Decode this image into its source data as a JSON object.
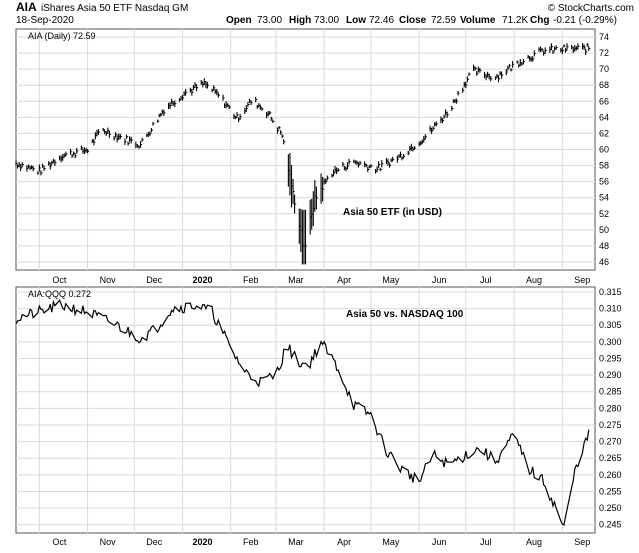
{
  "header": {
    "symbol": "AIA",
    "name": "iShares Asia 50 ETF  Nasdaq GM",
    "date": "18-Sep-2020",
    "open_label": "Open",
    "open": "73.00",
    "high_label": "High",
    "high": "73.00",
    "low_label": "Low",
    "low": "72.46",
    "close_label": "Close",
    "close": "72.59",
    "volume_label": "Volume",
    "volume": "71.2K",
    "chg_label": "Chg",
    "chg": "-0.21 (-0.29%)",
    "source": "© StockCharts.com"
  },
  "chart_data": [
    {
      "type": "bar",
      "legend": "AIA (Daily) 72.59",
      "annotation": "Asia 50 ETF (in USD)",
      "y_ticks": [
        "46",
        "48",
        "50",
        "52",
        "54",
        "56",
        "58",
        "60",
        "62",
        "64",
        "66",
        "68",
        "70",
        "72",
        "74"
      ],
      "ylim": [
        45,
        75
      ],
      "x_labels": [
        "Oct",
        "Nov",
        "Dec",
        "2020",
        "Feb",
        "Mar",
        "Apr",
        "May",
        "Jun",
        "Jul",
        "Aug",
        "Sep"
      ],
      "months": [
        "2019-10",
        "2019-11",
        "2019-12",
        "2020-01",
        "2020-02",
        "2020-03",
        "2020-04",
        "2020-05",
        "2020-06",
        "2020-07",
        "2020-08",
        "2020-09"
      ],
      "close_by_month": [
        [
          "2019-09-16",
          58.3
        ],
        [
          "2019-10-01",
          57.3
        ],
        [
          "2019-10-15",
          59.2
        ],
        [
          "2019-11-01",
          60.0
        ],
        [
          "2019-11-10",
          62.5
        ],
        [
          "2019-11-25",
          61.3
        ],
        [
          "2019-12-05",
          60.6
        ],
        [
          "2019-12-20",
          65.0
        ],
        [
          "2020-01-02",
          67.0
        ],
        [
          "2020-01-15",
          68.2
        ],
        [
          "2020-01-25",
          66.6
        ],
        [
          "2020-02-05",
          63.9
        ],
        [
          "2020-02-15",
          66.2
        ],
        [
          "2020-02-25",
          64.5
        ],
        [
          "2020-03-05",
          61.8
        ],
        [
          "2020-03-12",
          54.5
        ],
        [
          "2020-03-19",
          48.0
        ],
        [
          "2020-03-26",
          53.8
        ],
        [
          "2020-04-05",
          57.0
        ],
        [
          "2020-04-20",
          58.5
        ],
        [
          "2020-05-05",
          57.6
        ],
        [
          "2020-05-20",
          59.2
        ],
        [
          "2020-06-05",
          61.6
        ],
        [
          "2020-06-20",
          64.8
        ],
        [
          "2020-07-05",
          69.8
        ],
        [
          "2020-07-20",
          69.0
        ],
        [
          "2020-08-05",
          71.0
        ],
        [
          "2020-08-20",
          72.3
        ],
        [
          "2020-09-03",
          72.5
        ],
        [
          "2020-09-18",
          72.59
        ]
      ]
    },
    {
      "type": "line",
      "legend": "AIA:QQQ 0.272",
      "annotation": "Asia 50 vs. NASDAQ 100",
      "y_ticks": [
        "0.245",
        "0.250",
        "0.255",
        "0.260",
        "0.265",
        "0.270",
        "0.275",
        "0.280",
        "0.285",
        "0.290",
        "0.295",
        "0.300",
        "0.305",
        "0.310",
        "0.315"
      ],
      "ylim": [
        0.2425,
        0.3165
      ],
      "x_labels": [
        "Oct",
        "Nov",
        "Dec",
        "2020",
        "Feb",
        "Mar",
        "Apr",
        "May",
        "Jun",
        "Jul",
        "Aug",
        "Sep"
      ],
      "ratio_by_date": [
        [
          "2019-09-16",
          0.307
        ],
        [
          "2019-10-01",
          0.309
        ],
        [
          "2019-10-15",
          0.311
        ],
        [
          "2019-11-01",
          0.309
        ],
        [
          "2019-11-10",
          0.307
        ],
        [
          "2019-11-20",
          0.305
        ],
        [
          "2019-12-05",
          0.301
        ],
        [
          "2019-12-15",
          0.304
        ],
        [
          "2019-12-25",
          0.31
        ],
        [
          "2020-01-10",
          0.311
        ],
        [
          "2020-01-20",
          0.309
        ],
        [
          "2020-02-01",
          0.298
        ],
        [
          "2020-02-10",
          0.291
        ],
        [
          "2020-02-20",
          0.288
        ],
        [
          "2020-03-01",
          0.29
        ],
        [
          "2020-03-08",
          0.299
        ],
        [
          "2020-03-15",
          0.294
        ],
        [
          "2020-03-22",
          0.293
        ],
        [
          "2020-03-30",
          0.3
        ],
        [
          "2020-04-10",
          0.292
        ],
        [
          "2020-04-20",
          0.281
        ],
        [
          "2020-05-01",
          0.278
        ],
        [
          "2020-05-10",
          0.268
        ],
        [
          "2020-05-20",
          0.262
        ],
        [
          "2020-06-01",
          0.258
        ],
        [
          "2020-06-10",
          0.266
        ],
        [
          "2020-06-20",
          0.263
        ],
        [
          "2020-07-01",
          0.266
        ],
        [
          "2020-07-10",
          0.268
        ],
        [
          "2020-07-20",
          0.264
        ],
        [
          "2020-08-01",
          0.272
        ],
        [
          "2020-08-10",
          0.262
        ],
        [
          "2020-08-20",
          0.258
        ],
        [
          "2020-08-28",
          0.25
        ],
        [
          "2020-09-02",
          0.244
        ],
        [
          "2020-09-10",
          0.263
        ],
        [
          "2020-09-18",
          0.272
        ]
      ]
    }
  ],
  "colors": {
    "price": "#000000",
    "grid": "#d9d9d9",
    "frame": "#555555",
    "ratio": "#000000"
  }
}
